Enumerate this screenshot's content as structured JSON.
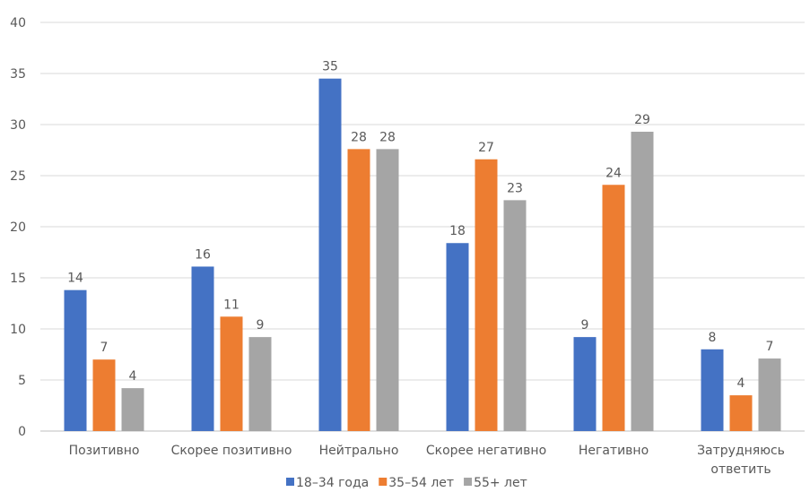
{
  "chart_data": {
    "type": "bar",
    "title": "",
    "xlabel": "",
    "ylabel": "",
    "ylim": [
      0,
      40
    ],
    "yticks": [
      0,
      5,
      10,
      15,
      20,
      25,
      30,
      35,
      40
    ],
    "grid": true,
    "legend": "bottom",
    "categories": [
      [
        "Позитивно"
      ],
      [
        "Скорее позитивно"
      ],
      [
        "Нейтрально"
      ],
      [
        "Скорее негативно"
      ],
      [
        "Негативно"
      ],
      [
        "Затрудняюсь",
        "ответить"
      ]
    ],
    "series": [
      {
        "name": "18–34 года",
        "color": "#4472C4",
        "values": [
          13.8,
          16.1,
          34.5,
          18.4,
          9.2,
          8.0
        ],
        "labels": [
          "14",
          "16",
          "35",
          "18",
          "9",
          "8"
        ]
      },
      {
        "name": "35–54 лет",
        "color": "#ED7D31",
        "values": [
          7.0,
          11.2,
          27.6,
          26.6,
          24.1,
          3.5
        ],
        "labels": [
          "7",
          "11",
          "28",
          "27",
          "24",
          "4"
        ]
      },
      {
        "name": "55+ лет",
        "color": "#A5A5A5",
        "values": [
          4.2,
          9.2,
          27.6,
          22.6,
          29.3,
          7.1
        ],
        "labels": [
          "4",
          "9",
          "28",
          "23",
          "29",
          "7"
        ]
      }
    ]
  }
}
